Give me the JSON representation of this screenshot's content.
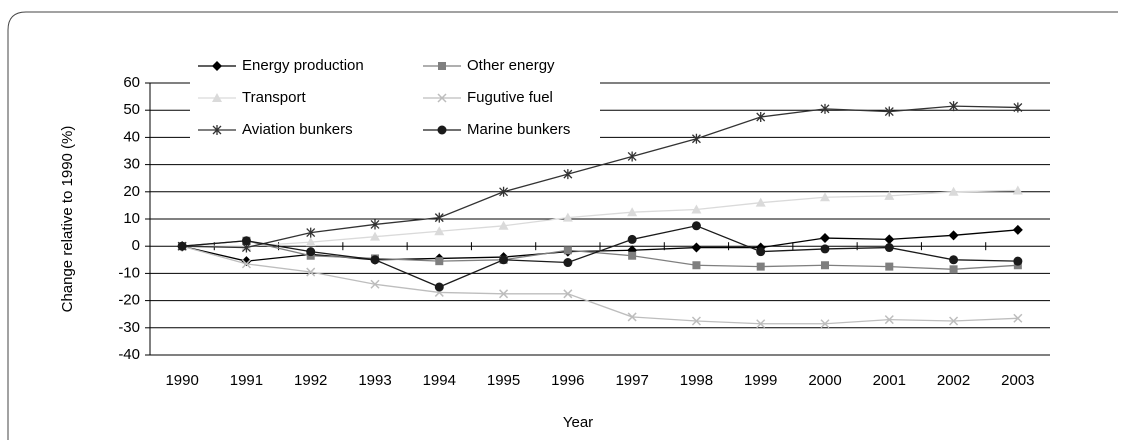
{
  "chart_data": {
    "type": "line",
    "xlabel": "Year",
    "ylabel": "Change relative to 1990 (%)",
    "categories": [
      "1990",
      "1991",
      "1992",
      "1993",
      "1994",
      "1995",
      "1996",
      "1997",
      "1998",
      "1999",
      "2000",
      "2001",
      "2002",
      "2003"
    ],
    "ylim": [
      -40,
      60
    ],
    "yticks": [
      -40,
      -30,
      -20,
      -10,
      0,
      10,
      20,
      30,
      40,
      50,
      60
    ],
    "grid": true,
    "legend": "upper left",
    "series": [
      {
        "name": "Energy production",
        "color": "#000000",
        "marker": "diamond",
        "values": [
          0,
          -5.5,
          -3,
          -5,
          -4.5,
          -4,
          -2,
          -1.5,
          -0.5,
          -0.5,
          3,
          2.5,
          4,
          6
        ]
      },
      {
        "name": "Other energy",
        "color": "#7f7f7f",
        "marker": "square",
        "values": [
          0,
          2,
          -3.5,
          -4.5,
          -5.5,
          -5,
          -1.5,
          -3.5,
          -7,
          -7.5,
          -7,
          -7.5,
          -8.5,
          -7
        ]
      },
      {
        "name": "Transport",
        "color": "#dadada",
        "marker": "triangle",
        "values": [
          0,
          0,
          1.5,
          3.5,
          5.5,
          7.5,
          10.5,
          12.5,
          13.5,
          16,
          18,
          18.5,
          20,
          20.5
        ]
      },
      {
        "name": "Fugutive fuel",
        "color": "#bdbdbd",
        "marker": "x",
        "values": [
          0,
          -6.5,
          -9.5,
          -14,
          -17,
          -17.5,
          -17.5,
          -26,
          -27.5,
          -28.5,
          -28.5,
          -27,
          -27.5,
          -26.5
        ]
      },
      {
        "name": "Aviation bunkers",
        "color": "#333333",
        "marker": "star",
        "values": [
          0,
          -0.5,
          5,
          8,
          10.5,
          20,
          26.5,
          33,
          39.5,
          47.5,
          50.5,
          49.5,
          51.5,
          51
        ]
      },
      {
        "name": "Marine bunkers",
        "color": "#1a1a1a",
        "marker": "circle",
        "values": [
          0,
          2,
          -2,
          -5,
          -15,
          -5,
          -6,
          2.5,
          7.5,
          -2,
          -1,
          -0.5,
          -5,
          -5.5
        ]
      }
    ]
  }
}
